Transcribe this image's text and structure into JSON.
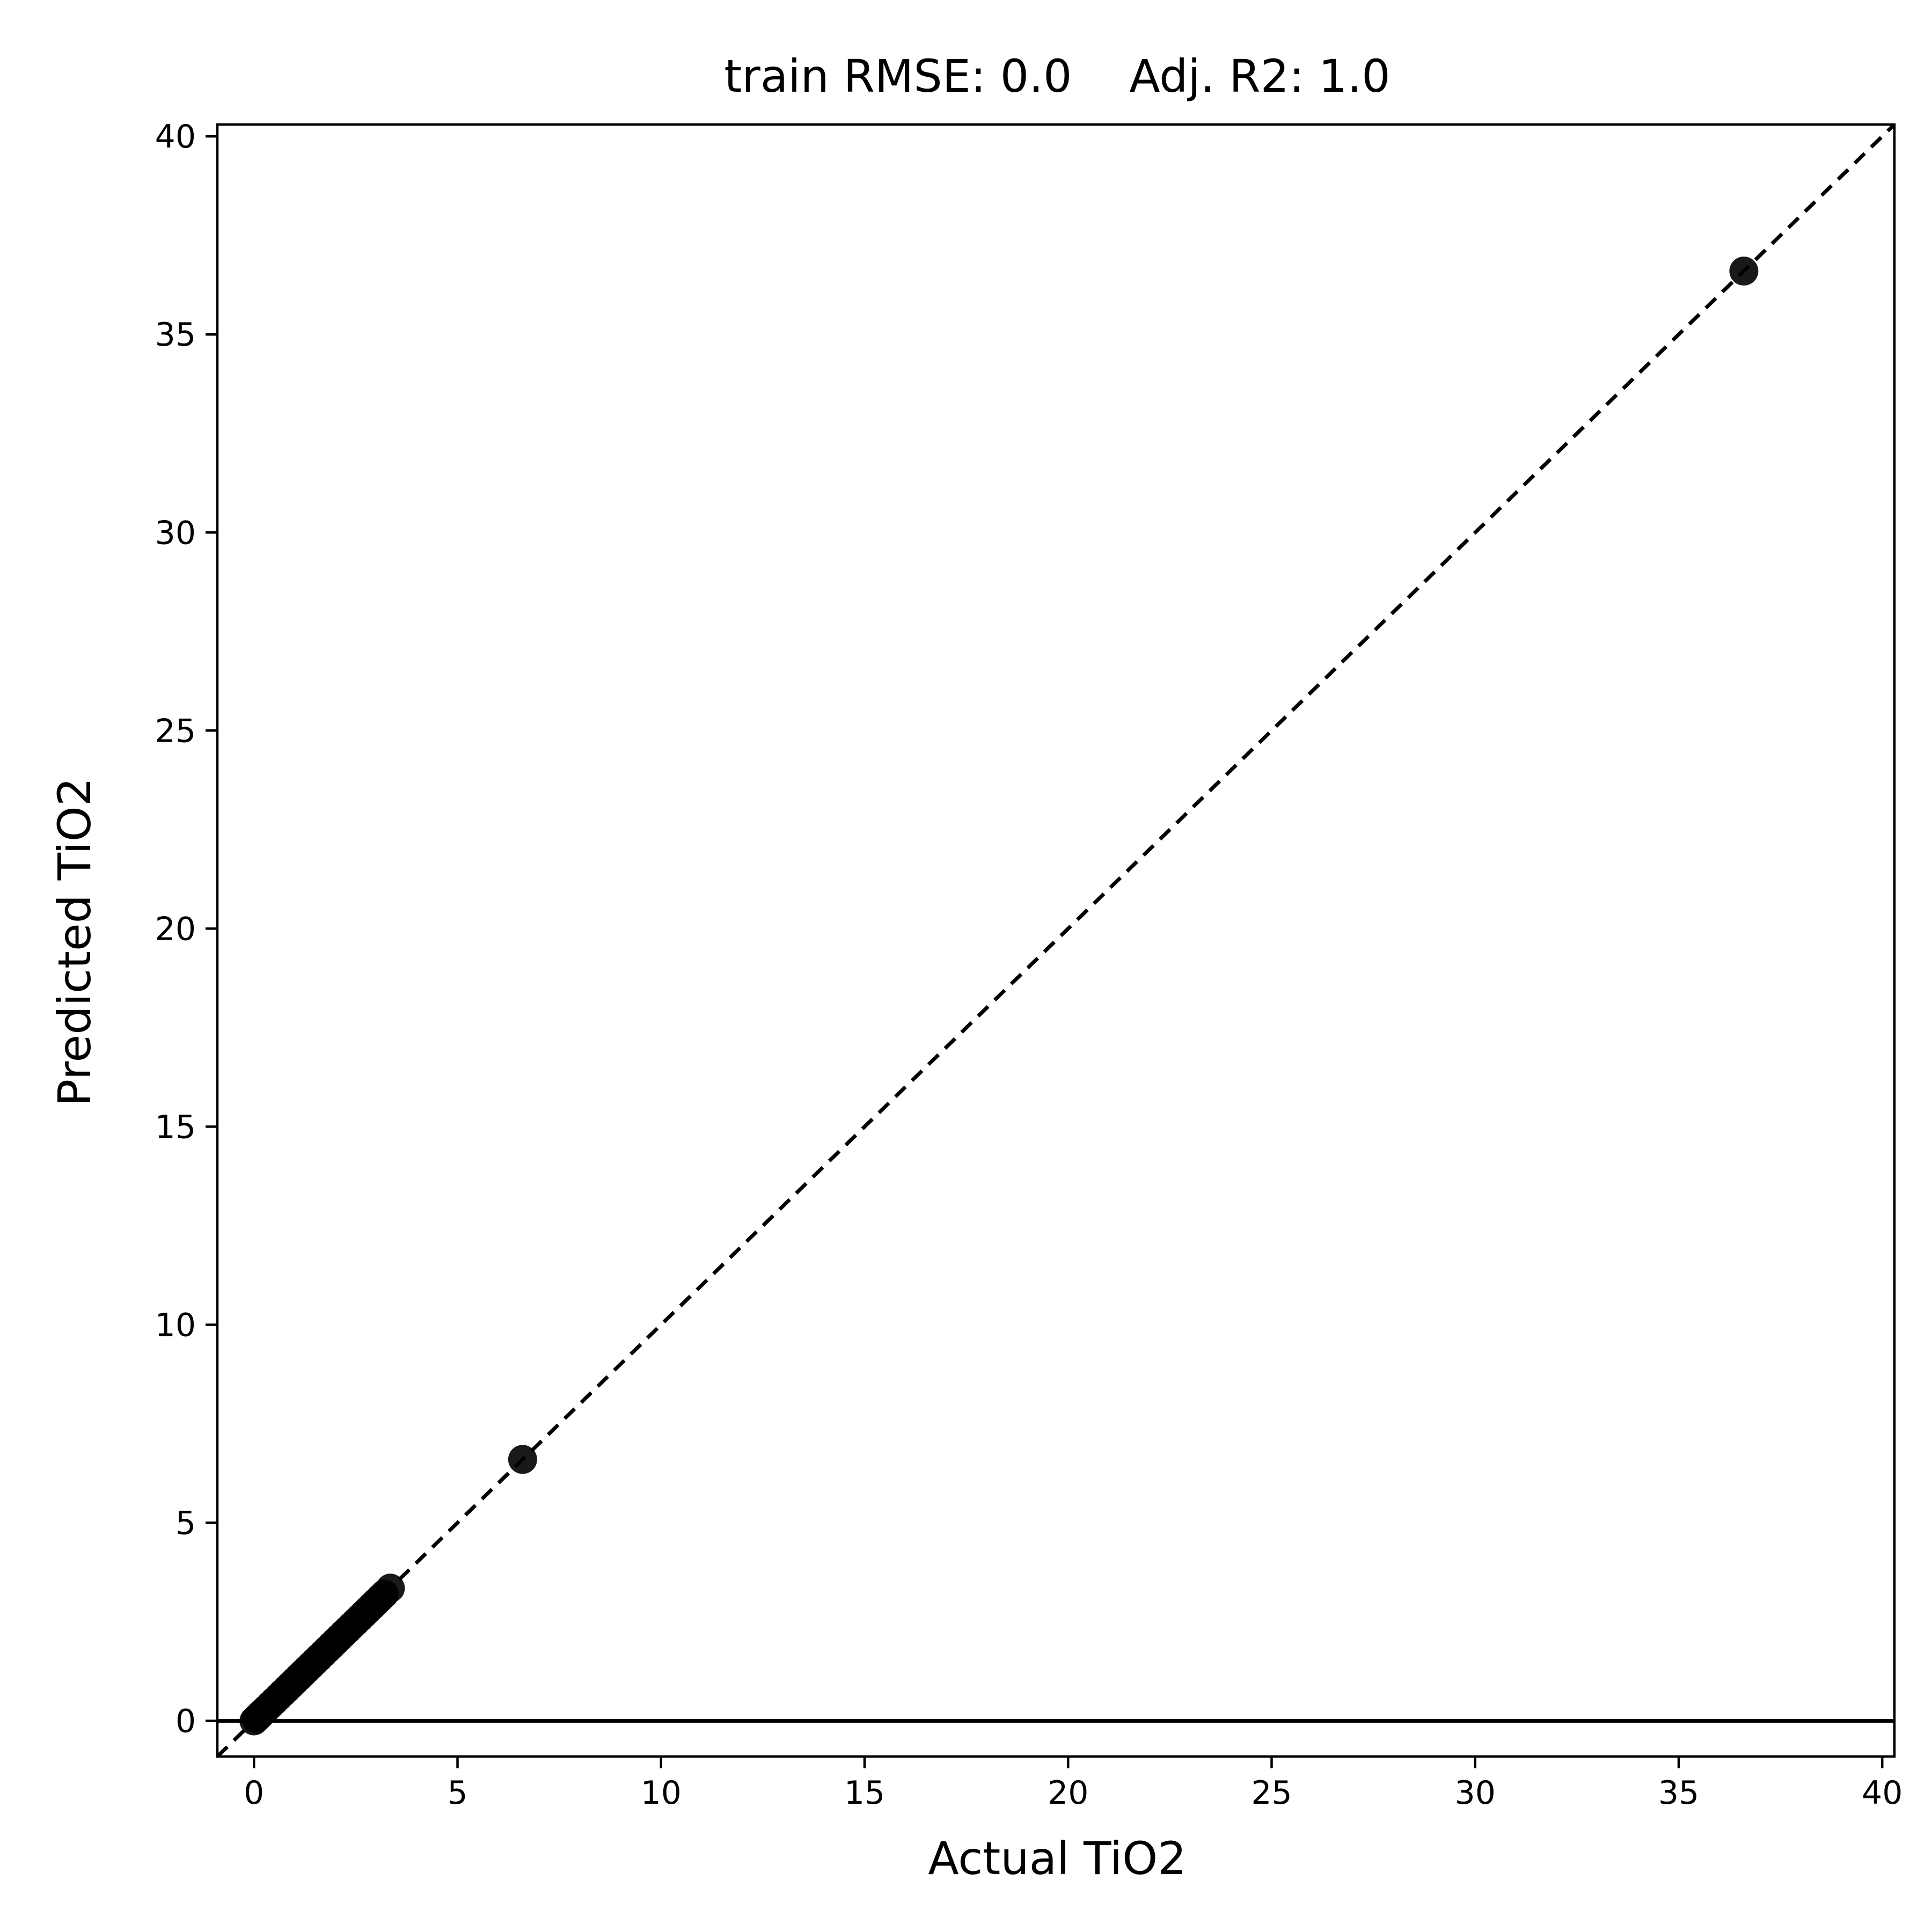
{
  "chart_data": {
    "type": "scatter",
    "title": "train RMSE: 0.0    Adj. R2: 1.0",
    "xlabel": "Actual TiO2",
    "ylabel": "Predicted TiO2",
    "xlim": [
      -0.9,
      40.3
    ],
    "ylim": [
      -0.9,
      40.3
    ],
    "xticks": [
      0,
      5,
      10,
      15,
      20,
      25,
      30,
      35,
      40
    ],
    "yticks": [
      0,
      5,
      10,
      15,
      20,
      25,
      30,
      35,
      40
    ],
    "grid": false,
    "reference_lines": [
      {
        "kind": "identity",
        "style": "dashed",
        "color": "#000000"
      },
      {
        "kind": "horizontal",
        "y": 0,
        "style": "solid",
        "color": "#000000"
      }
    ],
    "series": [
      {
        "color": "#000000",
        "x": [
          0.0,
          0.05,
          0.1,
          0.15,
          0.2,
          0.3,
          0.4,
          0.5,
          0.6,
          0.7,
          0.8,
          0.9,
          1.0,
          1.1,
          1.2,
          1.3,
          1.4,
          1.5,
          1.6,
          1.7,
          1.8,
          1.9,
          2.0,
          2.1,
          2.2,
          2.3,
          2.4,
          2.5,
          2.6,
          2.7,
          2.8,
          2.9,
          3.0,
          3.1,
          3.2,
          3.35,
          6.6,
          36.6
        ],
        "y": [
          0.0,
          0.05,
          0.1,
          0.15,
          0.2,
          0.3,
          0.4,
          0.5,
          0.6,
          0.7,
          0.8,
          0.9,
          1.0,
          1.1,
          1.2,
          1.3,
          1.4,
          1.5,
          1.6,
          1.7,
          1.8,
          1.9,
          2.0,
          2.1,
          2.2,
          2.3,
          2.4,
          2.5,
          2.6,
          2.7,
          2.8,
          2.9,
          3.0,
          3.1,
          3.2,
          3.35,
          6.6,
          36.6
        ]
      }
    ]
  }
}
